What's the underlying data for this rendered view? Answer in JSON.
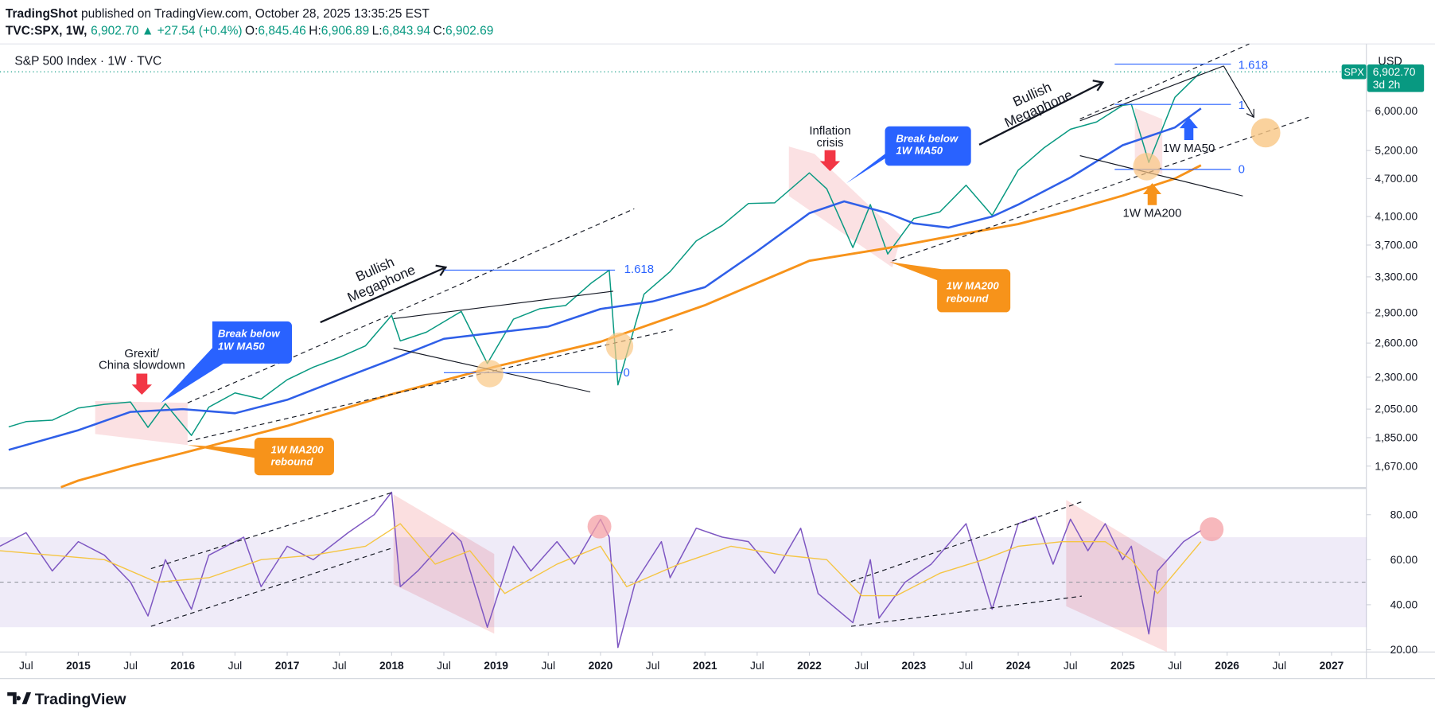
{
  "chart_data": [
    {
      "type": "line",
      "title": "S&P 500 Index · 1W · TVC",
      "currency": "USD",
      "footer": "TradingView",
      "header": {
        "publisher": "TradingShot",
        "published": "published on TradingView.com, October 28, 2025 13:35:25 EST",
        "symbol": "TVC:SPX, 1W,",
        "last": "6,902.70",
        "change": "▲ +27.54 (+0.4%)",
        "open_label": "O:",
        "open": "6,845.46",
        "high_label": "H:",
        "high": "6,906.89",
        "low_label": "L:",
        "low": "6,843.94",
        "close_label": "C:",
        "close": "6,902.69"
      },
      "last_price": {
        "value": 6902.7,
        "label": "6,902.70"
      },
      "badge": "SPX",
      "countdown": "3d 2h",
      "log_scale": true,
      "xlim": [
        "2014-04",
        "2027-05"
      ],
      "ylim": [
        1548,
        7631
      ],
      "yticks": [
        {
          "value": 1670,
          "label": "1,670.00"
        },
        {
          "value": 1850,
          "label": "1,850.00"
        },
        {
          "value": 2050,
          "label": "2,050.00"
        },
        {
          "value": 2300,
          "label": "2,300.00"
        },
        {
          "value": 2600,
          "label": "2,600.00"
        },
        {
          "value": 2900,
          "label": "2,900.00"
        },
        {
          "value": 3300,
          "label": "3,300.00"
        },
        {
          "value": 3700,
          "label": "3,700.00"
        },
        {
          "value": 4100,
          "label": "4,100.00"
        },
        {
          "value": 4700,
          "label": "4,700.00"
        },
        {
          "value": 5200,
          "label": "5,200.00"
        },
        {
          "value": 6000,
          "label": "6,000.00"
        }
      ],
      "series": [
        {
          "color": "#089981",
          "width": 1.3,
          "x": [
            "2014-05",
            "2014-07",
            "2014-10",
            "2015-01",
            "2015-04",
            "2015-07",
            "2015-09",
            "2015-11",
            "2016-02",
            "2016-04",
            "2016-07",
            "2016-10",
            "2017-01",
            "2017-04",
            "2017-07",
            "2017-10",
            "2018-01",
            "2018-02",
            "2018-05",
            "2018-09",
            "2018-12",
            "2019-03",
            "2019-06",
            "2019-09",
            "2019-12",
            "2020-02",
            "2020-03",
            "2020-06",
            "2020-09",
            "2020-12",
            "2021-03",
            "2021-06",
            "2021-09",
            "2022-01",
            "2022-03",
            "2022-06",
            "2022-08",
            "2022-10",
            "2023-01",
            "2023-04",
            "2023-07",
            "2023-10",
            "2024-01",
            "2024-04",
            "2024-07",
            "2024-10",
            "2025-01",
            "2025-02",
            "2025-04",
            "2025-07",
            "2025-10"
          ],
          "values": [
            1923,
            1960,
            1970,
            2058,
            2085,
            2103,
            1920,
            2090,
            1865,
            2065,
            2173,
            2126,
            2279,
            2384,
            2470,
            2575,
            2872,
            2620,
            2705,
            2914,
            2416,
            2834,
            2942,
            2977,
            3231,
            3380,
            2237,
            3100,
            3363,
            3756,
            3973,
            4297,
            4307,
            4797,
            4530,
            3667,
            4280,
            3583,
            4070,
            4169,
            4589,
            4117,
            4845,
            5254,
            5615,
            5762,
            6118,
            6144,
            4982,
            6296,
            6902.7
          ]
        },
        {
          "color": "#2f5fe8",
          "width": 2.2,
          "x": [
            "2014-05",
            "2015-01",
            "2015-07",
            "2016-01",
            "2016-07",
            "2017-01",
            "2017-07",
            "2018-01",
            "2018-07",
            "2019-01",
            "2019-07",
            "2020-01",
            "2020-07",
            "2021-01",
            "2021-07",
            "2022-01",
            "2022-05",
            "2022-10",
            "2023-01",
            "2023-05",
            "2023-10",
            "2024-01",
            "2024-07",
            "2025-01",
            "2025-07",
            "2025-10"
          ],
          "values": [
            1770,
            1900,
            2030,
            2050,
            2020,
            2120,
            2280,
            2450,
            2640,
            2700,
            2760,
            2940,
            3020,
            3180,
            3620,
            4150,
            4330,
            4150,
            4000,
            3940,
            4100,
            4280,
            4720,
            5300,
            5650,
            6050
          ]
        },
        {
          "color": "#f7931a",
          "width": 2.5,
          "x": [
            "2014-11",
            "2015-01",
            "2015-07",
            "2016-01",
            "2017-01",
            "2018-01",
            "2019-01",
            "2020-01",
            "2021-01",
            "2022-01",
            "2022-10",
            "2023-07",
            "2024-01",
            "2024-07",
            "2025-01",
            "2025-07",
            "2025-10"
          ],
          "values": [
            1548,
            1585,
            1670,
            1750,
            1930,
            2163,
            2390,
            2613,
            2980,
            3496,
            3660,
            3860,
            3990,
            4190,
            4420,
            4700,
            4930
          ]
        }
      ],
      "annotations": {
        "grexit": [
          "Grexit/",
          "China slowdown"
        ],
        "inflation": [
          "Inflation",
          "crisis"
        ],
        "break_ma50_1": [
          "Break below",
          "1W MA50"
        ],
        "break_ma50_2": [
          "Break below",
          "1W MA50"
        ],
        "rebound_ma200_1": [
          "1W MA200",
          "rebound"
        ],
        "rebound_ma200_2": [
          "1W MA200",
          "rebound"
        ],
        "megaphone_1": [
          "Bullish",
          "Megaphone"
        ],
        "megaphone_2": [
          "Bullish",
          "Megaphone"
        ],
        "fib_high_1": "1.618",
        "fib_low_1": "0",
        "fib_high_2": "1.618",
        "fib_mid_2": "1",
        "fib_low_2": "0",
        "ma50_label": "1W MA50",
        "ma200_label": "1W MA200"
      }
    },
    {
      "type": "line",
      "xlim": [
        "2014-04",
        "2027-05"
      ],
      "ylim": [
        19,
        91
      ],
      "band": [
        30,
        70
      ],
      "midline": 50,
      "yticks": [
        {
          "value": 20,
          "label": "20.00"
        },
        {
          "value": 40,
          "label": "40.00"
        },
        {
          "value": 60,
          "label": "60.00"
        },
        {
          "value": 80,
          "label": "80.00"
        }
      ],
      "xticks": [
        {
          "value": "2014-07",
          "label": "Jul"
        },
        {
          "value": "2015-01",
          "label": "2015"
        },
        {
          "value": "2015-07",
          "label": "Jul"
        },
        {
          "value": "2016-01",
          "label": "2016"
        },
        {
          "value": "2016-07",
          "label": "Jul"
        },
        {
          "value": "2017-01",
          "label": "2017"
        },
        {
          "value": "2017-07",
          "label": "Jul"
        },
        {
          "value": "2018-01",
          "label": "2018"
        },
        {
          "value": "2018-07",
          "label": "Jul"
        },
        {
          "value": "2019-01",
          "label": "2019"
        },
        {
          "value": "2019-07",
          "label": "Jul"
        },
        {
          "value": "2020-01",
          "label": "2020"
        },
        {
          "value": "2020-07",
          "label": "Jul"
        },
        {
          "value": "2021-01",
          "label": "2021"
        },
        {
          "value": "2021-07",
          "label": "Jul"
        },
        {
          "value": "2022-01",
          "label": "2022"
        },
        {
          "value": "2022-07",
          "label": "Jul"
        },
        {
          "value": "2023-01",
          "label": "2023"
        },
        {
          "value": "2023-07",
          "label": "Jul"
        },
        {
          "value": "2024-01",
          "label": "2024"
        },
        {
          "value": "2024-07",
          "label": "Jul"
        },
        {
          "value": "2025-01",
          "label": "2025"
        },
        {
          "value": "2025-07",
          "label": "Jul"
        },
        {
          "value": "2026-01",
          "label": "2026"
        },
        {
          "value": "2026-07",
          "label": "Jul"
        },
        {
          "value": "2027-01",
          "label": "2027"
        }
      ],
      "series": [
        {
          "color": "#7e57c2",
          "width": 1.3,
          "x": [
            "2014-04",
            "2014-07",
            "2014-10",
            "2015-01",
            "2015-04",
            "2015-07",
            "2015-09",
            "2015-11",
            "2016-02",
            "2016-04",
            "2016-08",
            "2016-10",
            "2017-01",
            "2017-04",
            "2017-08",
            "2017-11",
            "2018-01",
            "2018-02",
            "2018-04",
            "2018-08",
            "2018-09",
            "2018-12",
            "2019-03",
            "2019-05",
            "2019-08",
            "2019-10",
            "2020-01",
            "2020-02",
            "2020-03",
            "2020-05",
            "2020-08",
            "2020-09",
            "2020-12",
            "2021-03",
            "2021-06",
            "2021-09",
            "2021-12",
            "2022-02",
            "2022-06",
            "2022-08",
            "2022-09",
            "2022-12",
            "2023-03",
            "2023-07",
            "2023-10",
            "2024-01",
            "2024-03",
            "2024-05",
            "2024-07",
            "2024-09",
            "2024-11",
            "2025-01",
            "2025-02",
            "2025-04",
            "2025-05",
            "2025-08",
            "2025-10"
          ],
          "values": [
            66,
            72,
            55,
            68,
            62,
            50,
            35,
            60,
            38,
            62,
            70,
            48,
            66,
            60,
            72,
            80,
            90,
            48,
            55,
            72,
            68,
            30,
            66,
            55,
            68,
            58,
            78,
            70,
            21,
            50,
            68,
            52,
            74,
            70,
            68,
            54,
            74,
            45,
            32,
            60,
            34,
            50,
            58,
            76,
            38,
            76,
            79,
            58,
            78,
            64,
            76,
            60,
            66,
            27,
            55,
            68,
            73
          ]
        },
        {
          "color": "#f5c542",
          "width": 1.2,
          "x": [
            "2014-04",
            "2014-10",
            "2015-04",
            "2015-10",
            "2016-04",
            "2016-10",
            "2017-04",
            "2017-10",
            "2018-02",
            "2018-06",
            "2018-10",
            "2019-02",
            "2019-08",
            "2020-01",
            "2020-04",
            "2020-10",
            "2021-04",
            "2021-10",
            "2022-03",
            "2022-07",
            "2022-11",
            "2023-04",
            "2023-09",
            "2024-01",
            "2024-06",
            "2024-11",
            "2025-02",
            "2025-05",
            "2025-10"
          ],
          "values": [
            64,
            62,
            60,
            50,
            52,
            60,
            62,
            66,
            76,
            58,
            64,
            45,
            58,
            66,
            48,
            58,
            66,
            62,
            60,
            44,
            44,
            54,
            60,
            66,
            68,
            68,
            60,
            45,
            68
          ]
        }
      ]
    }
  ]
}
